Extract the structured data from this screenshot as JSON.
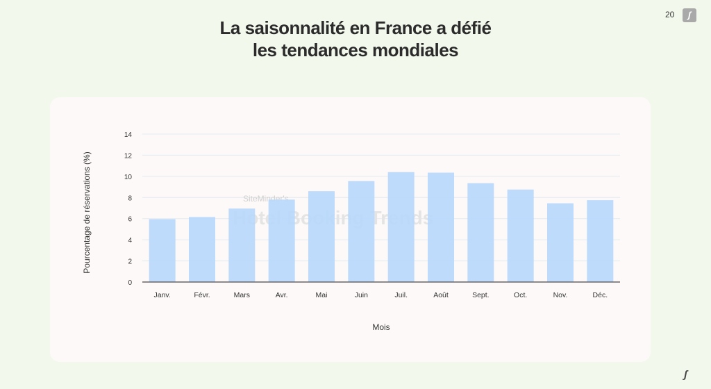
{
  "title_line1": "La saisonnalité en France a défié",
  "title_line2": "les tendances mondiales",
  "page_number": "20",
  "logo": "S",
  "chart_data": {
    "type": "bar",
    "categories": [
      "Janv.",
      "Févr.",
      "Mars",
      "Avr.",
      "Mai",
      "Juin",
      "Juil.",
      "Août",
      "Sept.",
      "Oct.",
      "Nov.",
      "Déc."
    ],
    "values": [
      5.95,
      6.15,
      6.95,
      7.8,
      8.6,
      9.55,
      10.4,
      10.35,
      9.35,
      8.75,
      7.45,
      7.75
    ],
    "xlabel": "Mois",
    "ylabel": "Pourcentage de réservations (%)",
    "ylim": [
      0,
      14
    ],
    "yticks": [
      0,
      2,
      4,
      6,
      8,
      10,
      12,
      14
    ],
    "grid": true,
    "bar_color": "#b9d8fc",
    "watermark": "SiteMinder's Hotel Booking Trends"
  }
}
